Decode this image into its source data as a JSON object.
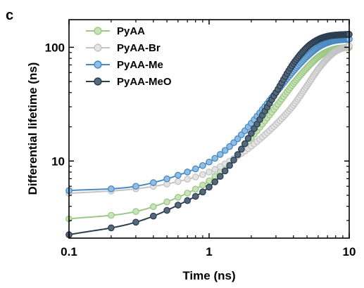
{
  "panel_label": "c",
  "chart_data": {
    "type": "line",
    "title": "",
    "xlabel": "Time (ns)",
    "ylabel": "Differential lifetime (ns)",
    "xscale": "log",
    "yscale": "log",
    "xlim": [
      0.1,
      10
    ],
    "ylim": [
      2.1,
      175
    ],
    "x_ticks": [
      0.1,
      1,
      10
    ],
    "x_tick_labels": [
      "0.1",
      "1",
      "10"
    ],
    "y_ticks": [
      10,
      100
    ],
    "y_tick_labels": [
      "10",
      "100"
    ],
    "grid": false,
    "legend_position": "top-left",
    "series": [
      {
        "name": "PyAA",
        "color": "#9dc886",
        "fill": "#c9e3b8",
        "points": [
          [
            0.1,
            3.1
          ],
          [
            0.3,
            3.6
          ],
          [
            0.6,
            4.8
          ],
          [
            1.0,
            6.7
          ],
          [
            1.5,
            10.5
          ],
          [
            2.0,
            16
          ],
          [
            3.0,
            30
          ],
          [
            4.0,
            48
          ],
          [
            5.0,
            66
          ],
          [
            6.0,
            82
          ],
          [
            7.0,
            92
          ],
          [
            8.0,
            97
          ],
          [
            10.0,
            100
          ]
        ]
      },
      {
        "name": "PyAA-Br",
        "color": "#c4c4c4",
        "fill": "#e4e4e4",
        "points": [
          [
            0.1,
            5.2
          ],
          [
            0.3,
            5.7
          ],
          [
            0.6,
            6.6
          ],
          [
            1.0,
            8.0
          ],
          [
            1.5,
            10.5
          ],
          [
            2.0,
            13.5
          ],
          [
            3.0,
            21
          ],
          [
            4.0,
            31
          ],
          [
            5.0,
            46
          ],
          [
            6.0,
            64
          ],
          [
            7.0,
            80
          ],
          [
            8.0,
            92
          ],
          [
            10.0,
            103
          ]
        ]
      },
      {
        "name": "PyAA-Me",
        "color": "#4a8ac2",
        "fill": "#8fbde3",
        "points": [
          [
            0.1,
            5.5
          ],
          [
            0.3,
            6.0
          ],
          [
            0.6,
            7.5
          ],
          [
            1.0,
            9.8
          ],
          [
            1.5,
            14.5
          ],
          [
            2.0,
            21.5
          ],
          [
            3.0,
            40
          ],
          [
            4.0,
            62
          ],
          [
            5.0,
            83
          ],
          [
            6.0,
            100
          ],
          [
            7.0,
            110
          ],
          [
            8.0,
            115
          ],
          [
            10.0,
            118
          ]
        ]
      },
      {
        "name": "PyAA-MeO",
        "color": "#2c3e50",
        "fill": "#55697c",
        "points": [
          [
            0.1,
            2.25
          ],
          [
            0.3,
            2.9
          ],
          [
            0.6,
            4.1
          ],
          [
            1.0,
            5.9
          ],
          [
            1.5,
            10.2
          ],
          [
            2.0,
            17.5
          ],
          [
            3.0,
            40
          ],
          [
            4.0,
            72
          ],
          [
            5.0,
            100
          ],
          [
            6.0,
            117
          ],
          [
            7.0,
            125
          ],
          [
            8.0,
            128
          ],
          [
            10.0,
            130
          ]
        ]
      }
    ]
  }
}
